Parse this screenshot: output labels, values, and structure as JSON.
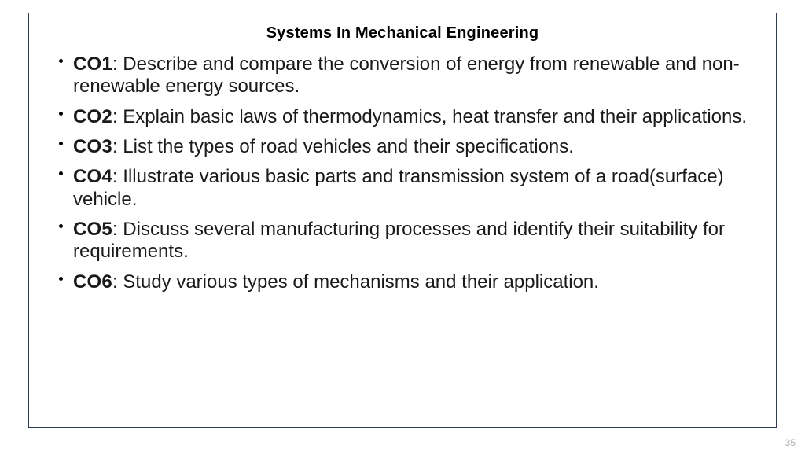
{
  "slide": {
    "title": "Systems In Mechanical Engineering",
    "page_number": "35",
    "outcomes": [
      {
        "label": "CO1",
        "text": ": Describe and compare the conversion of energy from renewable and non-renewable energy sources."
      },
      {
        "label": "CO2",
        "text": ": Explain basic laws of thermodynamics, heat transfer and their applications."
      },
      {
        "label": "CO3",
        "text": ": List the types of road vehicles and their specifications."
      },
      {
        "label": "CO4",
        "text": ": Illustrate various basic parts and transmission system of a road(surface) vehicle."
      },
      {
        "label": "CO5",
        "text": ": Discuss several manufacturing processes and identify their suitability for  requirements."
      },
      {
        "label": "CO6",
        "text": ": Study various types of mechanisms and their application."
      }
    ]
  },
  "style": {
    "border_color": "#2d3e55",
    "background_color": "#ffffff",
    "title_fontsize": 20,
    "body_fontsize": 24,
    "page_number_color": "#b0b0b0"
  }
}
